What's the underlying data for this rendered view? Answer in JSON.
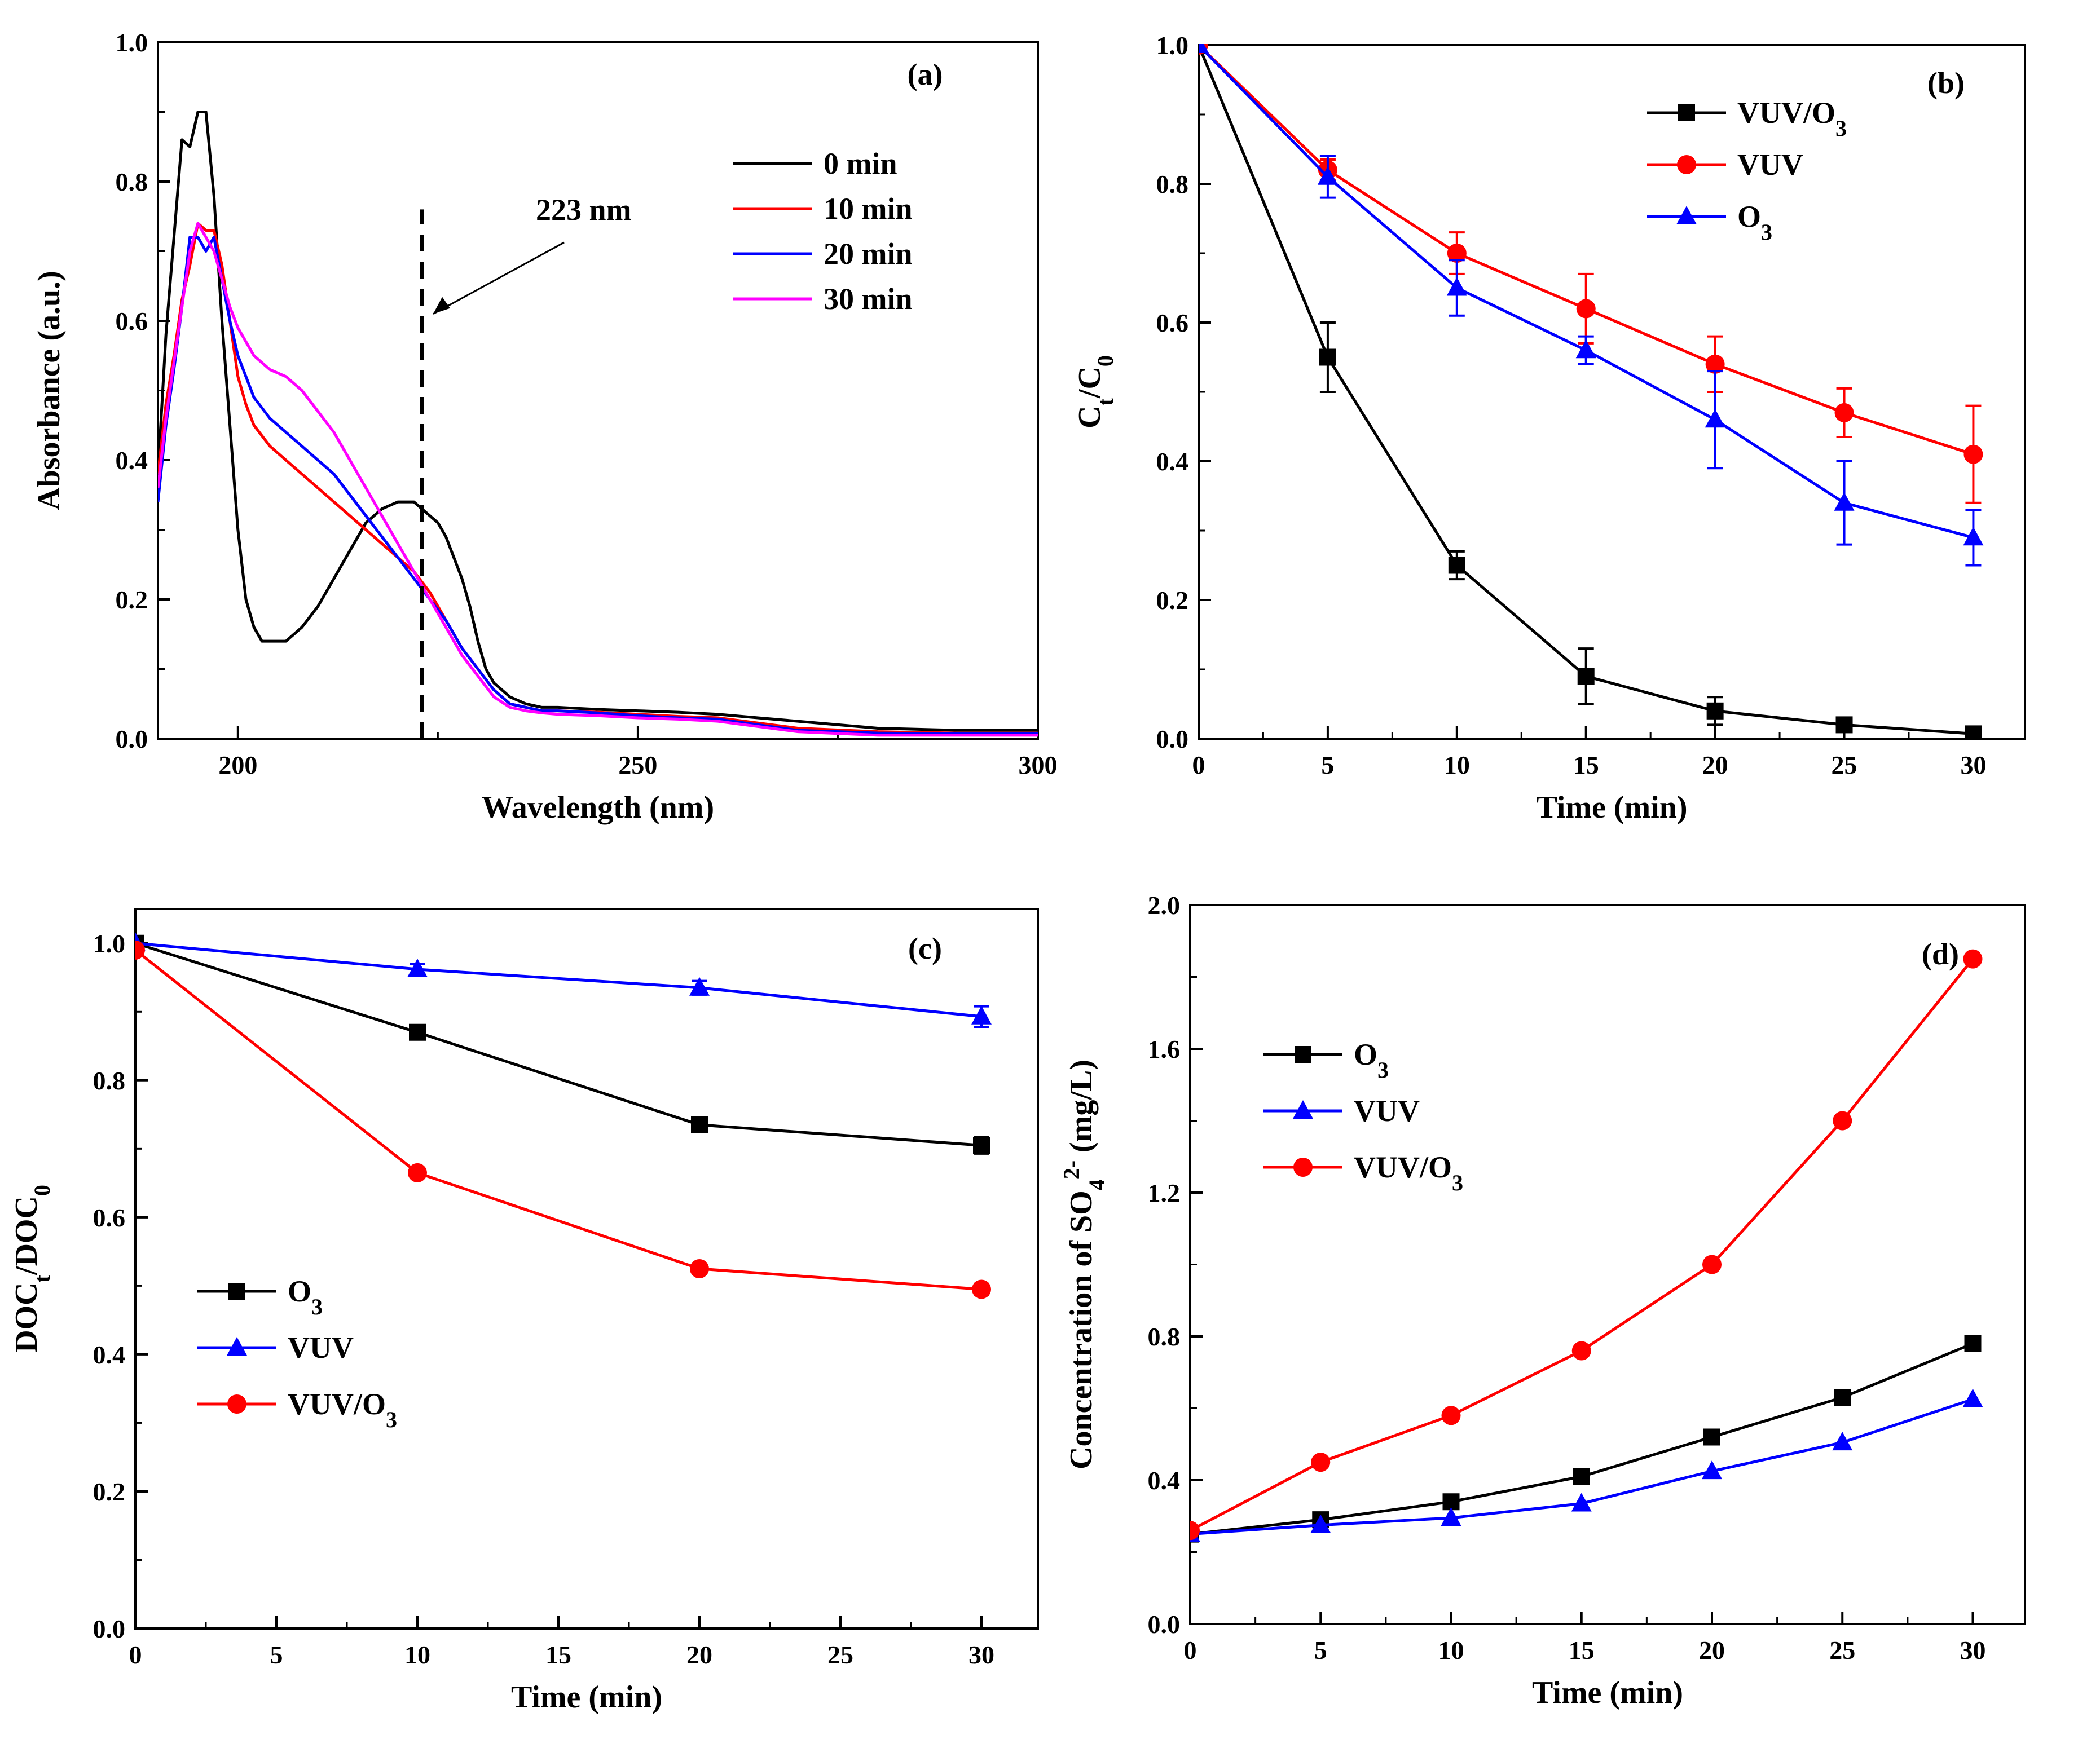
{
  "chart_data": [
    {
      "id": "a",
      "type": "line",
      "panel_label": "(a)",
      "xlabel": "Wavelength (nm)",
      "ylabel": "Absorbance (a.u.)",
      "xlim": [
        190,
        300
      ],
      "ylim": [
        0.0,
        1.0
      ],
      "xticks": [
        200,
        250,
        300
      ],
      "xtick_labels": [
        "200",
        "250",
        "300"
      ],
      "yticks": [
        0.0,
        0.2,
        0.4,
        0.6,
        0.8,
        1.0
      ],
      "ytick_labels": [
        "0.0",
        "0.2",
        "0.4",
        "0.6",
        "0.8",
        "1.0"
      ],
      "legend_position": "top-right",
      "annotation": {
        "text": "223 nm",
        "x": 223
      },
      "series": [
        {
          "name": "0 min",
          "color": "#000000",
          "x": [
            190,
            191,
            192,
            193,
            194,
            195,
            196,
            197,
            198,
            199,
            200,
            201,
            202,
            203,
            204,
            205,
            206,
            208,
            210,
            212,
            214,
            216,
            218,
            220,
            222,
            223,
            224,
            225,
            226,
            227,
            228,
            229,
            230,
            231,
            232,
            234,
            236,
            238,
            240,
            245,
            250,
            255,
            260,
            265,
            270,
            280,
            290,
            300
          ],
          "y": [
            0.38,
            0.58,
            0.72,
            0.86,
            0.85,
            0.9,
            0.9,
            0.78,
            0.6,
            0.45,
            0.3,
            0.2,
            0.16,
            0.14,
            0.14,
            0.14,
            0.14,
            0.16,
            0.19,
            0.23,
            0.27,
            0.31,
            0.33,
            0.34,
            0.34,
            0.33,
            0.32,
            0.31,
            0.29,
            0.26,
            0.23,
            0.19,
            0.14,
            0.1,
            0.08,
            0.06,
            0.05,
            0.045,
            0.045,
            0.042,
            0.04,
            0.038,
            0.035,
            0.03,
            0.025,
            0.015,
            0.012,
            0.012
          ]
        },
        {
          "name": "10 min",
          "color": "#ff0000",
          "x": [
            190,
            191,
            192,
            193,
            194,
            195,
            196,
            197,
            198,
            199,
            200,
            201,
            202,
            204,
            206,
            208,
            210,
            212,
            214,
            216,
            218,
            220,
            222,
            224,
            226,
            228,
            230,
            232,
            234,
            236,
            238,
            240,
            245,
            250,
            255,
            260,
            270,
            280,
            290,
            300
          ],
          "y": [
            0.38,
            0.48,
            0.55,
            0.63,
            0.68,
            0.74,
            0.73,
            0.73,
            0.68,
            0.6,
            0.52,
            0.48,
            0.45,
            0.42,
            0.4,
            0.38,
            0.36,
            0.34,
            0.32,
            0.3,
            0.28,
            0.26,
            0.24,
            0.21,
            0.17,
            0.13,
            0.1,
            0.07,
            0.05,
            0.045,
            0.04,
            0.04,
            0.038,
            0.035,
            0.032,
            0.03,
            0.015,
            0.01,
            0.008,
            0.008
          ]
        },
        {
          "name": "20 min",
          "color": "#0000ff",
          "x": [
            190,
            191,
            192,
            193,
            194,
            195,
            196,
            197,
            198,
            199,
            200,
            201,
            202,
            204,
            206,
            208,
            210,
            212,
            214,
            216,
            218,
            220,
            222,
            224,
            226,
            228,
            230,
            232,
            234,
            236,
            238,
            240,
            245,
            250,
            255,
            260,
            270,
            280,
            290,
            300
          ],
          "y": [
            0.34,
            0.45,
            0.53,
            0.62,
            0.72,
            0.72,
            0.7,
            0.72,
            0.66,
            0.6,
            0.55,
            0.52,
            0.49,
            0.46,
            0.44,
            0.42,
            0.4,
            0.38,
            0.35,
            0.32,
            0.29,
            0.26,
            0.23,
            0.2,
            0.17,
            0.13,
            0.1,
            0.07,
            0.05,
            0.045,
            0.04,
            0.04,
            0.037,
            0.033,
            0.03,
            0.028,
            0.012,
            0.008,
            0.007,
            0.007
          ]
        },
        {
          "name": "30 min",
          "color": "#ff00ff",
          "x": [
            190,
            191,
            192,
            193,
            194,
            195,
            196,
            197,
            198,
            199,
            200,
            201,
            202,
            204,
            206,
            208,
            210,
            212,
            214,
            216,
            218,
            220,
            222,
            224,
            226,
            228,
            230,
            232,
            234,
            236,
            238,
            240,
            245,
            250,
            255,
            260,
            270,
            280,
            290,
            300
          ],
          "y": [
            0.36,
            0.46,
            0.54,
            0.62,
            0.7,
            0.74,
            0.72,
            0.7,
            0.66,
            0.62,
            0.59,
            0.57,
            0.55,
            0.53,
            0.52,
            0.5,
            0.47,
            0.44,
            0.4,
            0.36,
            0.32,
            0.28,
            0.24,
            0.2,
            0.16,
            0.12,
            0.09,
            0.06,
            0.045,
            0.04,
            0.037,
            0.035,
            0.033,
            0.03,
            0.028,
            0.025,
            0.01,
            0.005,
            0.005,
            0.005
          ]
        }
      ]
    },
    {
      "id": "b",
      "type": "line",
      "panel_label": "(b)",
      "xlabel": "Time (min)",
      "ylabel": "Ct/C0",
      "ylabel_parts": {
        "main": "C",
        "sub1": "t",
        "slash": "/C",
        "sub2": "0"
      },
      "xlim": [
        0,
        32
      ],
      "ylim": [
        0.0,
        1.0
      ],
      "xticks": [
        0,
        5,
        10,
        15,
        20,
        25,
        30
      ],
      "xtick_labels": [
        "0",
        "5",
        "10",
        "15",
        "20",
        "25",
        "30"
      ],
      "yticks": [
        0.0,
        0.2,
        0.4,
        0.6,
        0.8,
        1.0
      ],
      "ytick_labels": [
        "0.0",
        "0.2",
        "0.4",
        "0.6",
        "0.8",
        "1.0"
      ],
      "legend_position": "top-right",
      "series": [
        {
          "name": "VUV/O3",
          "legend_main": "VUV/O",
          "legend_sub": "3",
          "color": "#000000",
          "marker": "square",
          "x": [
            0,
            5,
            10,
            15,
            20,
            25,
            30
          ],
          "y": [
            1.0,
            0.55,
            0.25,
            0.09,
            0.04,
            0.02,
            0.007
          ],
          "err": [
            0,
            0.05,
            0.02,
            0.04,
            0.02,
            0.005,
            0.003
          ]
        },
        {
          "name": "VUV",
          "legend_main": "VUV",
          "legend_sub": "",
          "color": "#ff0000",
          "marker": "circle",
          "x": [
            0,
            5,
            10,
            15,
            20,
            25,
            30
          ],
          "y": [
            1.0,
            0.82,
            0.7,
            0.62,
            0.54,
            0.47,
            0.41
          ],
          "err": [
            0,
            0.015,
            0.03,
            0.05,
            0.04,
            0.035,
            0.07
          ]
        },
        {
          "name": "O3",
          "legend_main": "O",
          "legend_sub": "3",
          "color": "#0000ff",
          "marker": "triangle",
          "x": [
            0,
            5,
            10,
            15,
            20,
            25,
            30
          ],
          "y": [
            1.0,
            0.81,
            0.65,
            0.56,
            0.46,
            0.34,
            0.29
          ],
          "err": [
            0,
            0.03,
            0.04,
            0.02,
            0.07,
            0.06,
            0.04
          ]
        }
      ]
    },
    {
      "id": "c",
      "type": "line",
      "panel_label": "(c)",
      "xlabel": "Time  (min)",
      "ylabel": "DOCt/DOC0",
      "ylabel_parts": {
        "main": "DOC",
        "sub1": "t",
        "slash": "/DOC",
        "sub2": "0"
      },
      "xlim": [
        0,
        32
      ],
      "ylim": [
        0.0,
        1.05
      ],
      "xticks": [
        0,
        5,
        10,
        15,
        20,
        25,
        30
      ],
      "xtick_labels": [
        "0",
        "5",
        "10",
        "15",
        "20",
        "25",
        "30"
      ],
      "yticks": [
        0.0,
        0.2,
        0.4,
        0.6,
        0.8,
        1.0
      ],
      "ytick_labels": [
        "0.0",
        "0.2",
        "0.4",
        "0.6",
        "0.8",
        "1.0"
      ],
      "legend_position": "bottom-left",
      "series": [
        {
          "name": "O3",
          "legend_main": "O",
          "legend_sub": "3",
          "color": "#000000",
          "marker": "square",
          "x": [
            0,
            10,
            20,
            30
          ],
          "y": [
            1.0,
            0.87,
            0.735,
            0.705
          ],
          "err": [
            0,
            0.01,
            0.01,
            0.012
          ]
        },
        {
          "name": "VUV",
          "legend_main": "VUV",
          "legend_sub": "",
          "color": "#0000ff",
          "marker": "triangle",
          "x": [
            0,
            10,
            20,
            30
          ],
          "y": [
            1.0,
            0.962,
            0.935,
            0.893
          ],
          "err": [
            0,
            0.008,
            0.01,
            0.015
          ]
        },
        {
          "name": "VUV/O3",
          "legend_main": "VUV/O",
          "legend_sub": "3",
          "color": "#ff0000",
          "marker": "circle",
          "x": [
            0,
            10,
            20,
            30
          ],
          "y": [
            0.99,
            0.665,
            0.525,
            0.495
          ],
          "err": [
            0,
            0.005,
            0.008,
            0.008
          ]
        }
      ]
    },
    {
      "id": "d",
      "type": "line",
      "panel_label": "(d)",
      "xlabel": "Time (min)",
      "ylabel": "Concentration of SO4 2- (mg/L)",
      "ylabel_parts": {
        "main": "Concentration of SO",
        "sub": "4",
        "sup": "2-",
        "unit": "  (mg/L)"
      },
      "xlim": [
        0,
        32
      ],
      "ylim": [
        0.0,
        2.0
      ],
      "xticks": [
        0,
        5,
        10,
        15,
        20,
        25,
        30
      ],
      "xtick_labels": [
        "0",
        "5",
        "10",
        "15",
        "20",
        "25",
        "30"
      ],
      "yticks": [
        0.0,
        0.4,
        0.8,
        1.2,
        1.6,
        2.0
      ],
      "ytick_labels": [
        "0.0",
        "0.4",
        "0.8",
        "1.2",
        "1.6",
        "2.0"
      ],
      "legend_position": "top-left",
      "series": [
        {
          "name": "O3",
          "legend_main": "O",
          "legend_sub": "3",
          "color": "#000000",
          "marker": "square",
          "x": [
            0,
            5,
            10,
            15,
            20,
            25,
            30
          ],
          "y": [
            0.25,
            0.29,
            0.34,
            0.41,
            0.52,
            0.63,
            0.78
          ],
          "err": [
            0,
            0,
            0,
            0,
            0,
            0,
            0
          ]
        },
        {
          "name": "VUV",
          "legend_main": "VUV",
          "legend_sub": "",
          "color": "#0000ff",
          "marker": "triangle",
          "x": [
            0,
            5,
            10,
            15,
            20,
            25,
            30
          ],
          "y": [
            0.25,
            0.275,
            0.295,
            0.335,
            0.425,
            0.505,
            0.625
          ],
          "err": [
            0,
            0,
            0,
            0,
            0,
            0,
            0
          ]
        },
        {
          "name": "VUV/O3",
          "legend_main": "VUV/O",
          "legend_sub": "3",
          "color": "#ff0000",
          "marker": "circle",
          "x": [
            0,
            5,
            10,
            15,
            20,
            25,
            30
          ],
          "y": [
            0.26,
            0.45,
            0.58,
            0.76,
            1.0,
            1.4,
            1.85
          ],
          "err": [
            0,
            0,
            0,
            0,
            0,
            0,
            0
          ]
        }
      ]
    }
  ]
}
